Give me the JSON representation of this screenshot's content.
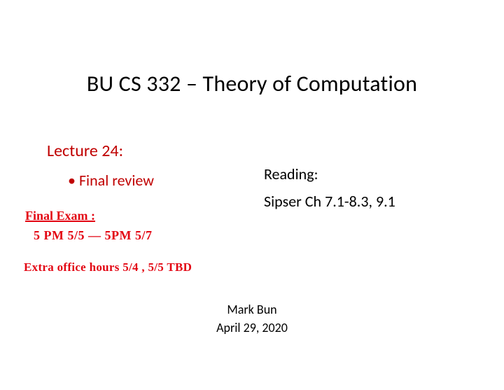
{
  "title": "BU CS 332 – Theory of Computation",
  "lecture": {
    "heading": "Lecture 24:",
    "bullet": "Final review"
  },
  "reading": {
    "heading": "Reading:",
    "text": "Sipser Ch 7.1-8.3, 9.1"
  },
  "footer": {
    "author": "Mark Bun",
    "date": "April 29, 2020"
  },
  "handwriting": {
    "line1": "Final Exam :",
    "line2": "5 PM  5/5   —   5PM  5/7",
    "line3": "Extra office hours   5/4 , 5/5  TBD"
  },
  "colors": {
    "background": "#ffffff",
    "text_primary": "#000000",
    "text_accent": "#c00000",
    "handwriting": "#e30613"
  },
  "fonts": {
    "title_size_pt": 32,
    "heading_size_pt": 24,
    "body_size_pt": 22,
    "footer_size_pt": 18,
    "handwriting_size_pt": 18
  }
}
